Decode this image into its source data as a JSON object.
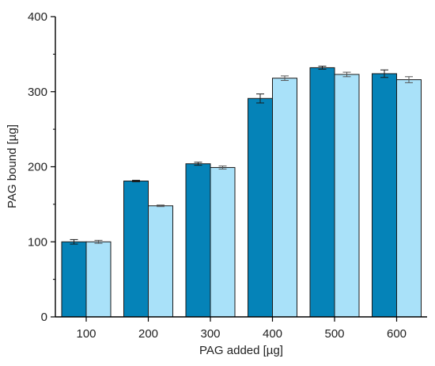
{
  "chart_data": {
    "type": "bar",
    "categories": [
      "100",
      "200",
      "300",
      "400",
      "500",
      "600"
    ],
    "series": [
      {
        "values": [
          100,
          181,
          204,
          291,
          332,
          324
        ],
        "errors": [
          3,
          1,
          2,
          6,
          2,
          5
        ],
        "color": "#0583b8"
      },
      {
        "values": [
          100,
          148,
          199,
          318,
          323,
          316
        ],
        "errors": [
          2,
          1,
          2,
          3,
          3,
          4
        ],
        "color": "#a9e1f9"
      }
    ],
    "xlabel": "PAG added [µg]",
    "ylabel": "PAG bound [µg]",
    "ylim": [
      0,
      400
    ],
    "yticks": [
      "0",
      "100",
      "200",
      "300",
      "400"
    ],
    "grid": false,
    "legend": "none"
  }
}
